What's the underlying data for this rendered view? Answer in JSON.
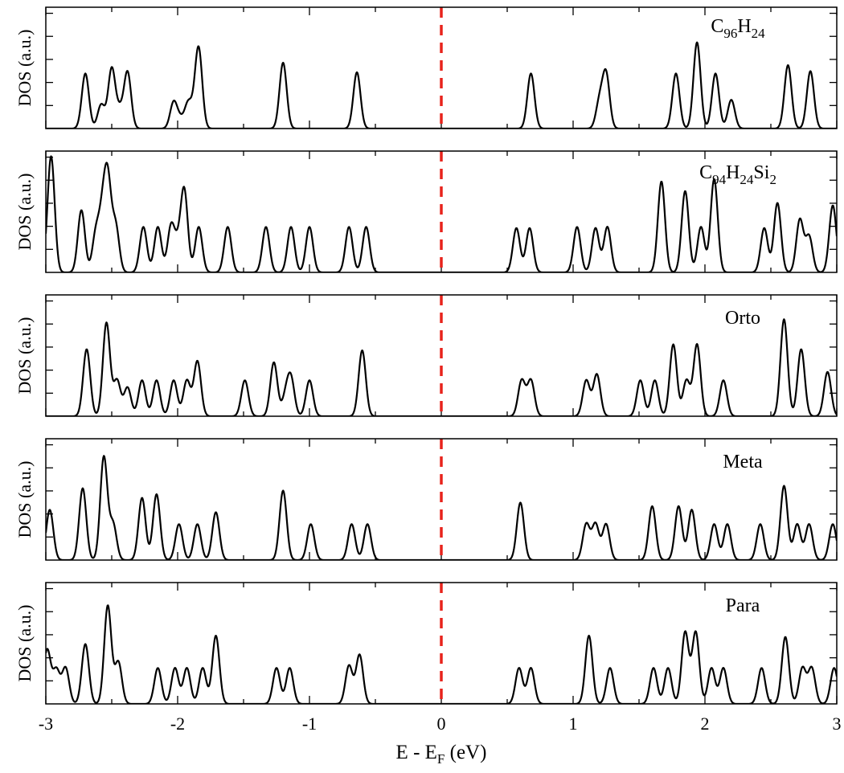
{
  "colors": {
    "fermi_line": "#e8231c",
    "curve": "#000000"
  },
  "chart_data": {
    "type": "line",
    "xlabel": "E - E",
    "xlabel_subscript": "F",
    "xlabel_suffix": " (eV)",
    "xlim": [
      -3,
      3
    ],
    "xticks": [
      "-3",
      "-2",
      "-1",
      "0",
      "1",
      "2",
      "3"
    ],
    "fermi_level": 0,
    "fermi_line_style": "dashed",
    "panels": [
      {
        "name": "C96H24",
        "label_parts": [
          {
            "t": "C"
          },
          {
            "t": "96",
            "sub": true
          },
          {
            "t": "H"
          },
          {
            "t": "24",
            "sub": true
          }
        ],
        "ylabel": "DOS (a.u.)",
        "ylim": [
          0,
          1
        ],
        "peaks": [
          [
            -2.7,
            0.46
          ],
          [
            -2.58,
            0.2
          ],
          [
            -2.5,
            0.5
          ],
          [
            -2.44,
            0.14
          ],
          [
            -2.38,
            0.47
          ],
          [
            -2.03,
            0.22
          ],
          [
            -1.98,
            0.07
          ],
          [
            -1.92,
            0.21
          ],
          [
            -1.87,
            0.08
          ],
          [
            -1.84,
            0.64
          ],
          [
            -1.2,
            0.55
          ],
          [
            -0.64,
            0.47
          ],
          [
            0.68,
            0.46
          ],
          [
            1.2,
            0.22
          ],
          [
            1.25,
            0.45
          ],
          [
            1.78,
            0.46
          ],
          [
            1.94,
            0.72
          ],
          [
            2.08,
            0.46
          ],
          [
            2.2,
            0.24
          ],
          [
            2.63,
            0.53
          ],
          [
            2.8,
            0.48
          ]
        ]
      },
      {
        "name": "C94H24Si2",
        "label_parts": [
          {
            "t": "C"
          },
          {
            "t": "94",
            "sub": true
          },
          {
            "t": "H"
          },
          {
            "t": "24",
            "sub": true
          },
          {
            "t": "Si"
          },
          {
            "t": "2",
            "sub": true
          }
        ],
        "ylabel": "DOS (a.u.)",
        "ylim": [
          0,
          1
        ],
        "peaks": [
          [
            -2.96,
            0.97
          ],
          [
            -2.73,
            0.52
          ],
          [
            -2.62,
            0.32
          ],
          [
            -2.57,
            0.42
          ],
          [
            -2.53,
            0.72
          ],
          [
            -2.47,
            0.38
          ],
          [
            -2.26,
            0.38
          ],
          [
            -2.15,
            0.38
          ],
          [
            -2.05,
            0.38
          ],
          [
            -2.0,
            0.18
          ],
          [
            -1.95,
            0.68
          ],
          [
            -1.84,
            0.38
          ],
          [
            -1.62,
            0.38
          ],
          [
            -1.33,
            0.38
          ],
          [
            -1.14,
            0.38
          ],
          [
            -1.0,
            0.38
          ],
          [
            -0.7,
            0.38
          ],
          [
            -0.57,
            0.38
          ],
          [
            0.57,
            0.37
          ],
          [
            0.67,
            0.37
          ],
          [
            1.03,
            0.38
          ],
          [
            1.17,
            0.37
          ],
          [
            1.26,
            0.38
          ],
          [
            1.67,
            0.76
          ],
          [
            1.85,
            0.68
          ],
          [
            1.97,
            0.38
          ],
          [
            2.07,
            0.78
          ],
          [
            2.45,
            0.37
          ],
          [
            2.55,
            0.58
          ],
          [
            2.72,
            0.44
          ],
          [
            2.79,
            0.3
          ],
          [
            2.97,
            0.56
          ]
        ]
      },
      {
        "name": "Orto",
        "label_parts": [
          {
            "t": "Orto"
          }
        ],
        "ylabel": "DOS (a.u.)",
        "ylim": [
          0,
          1
        ],
        "peaks": [
          [
            -2.69,
            0.56
          ],
          [
            -2.54,
            0.78
          ],
          [
            -2.46,
            0.3
          ],
          [
            -2.38,
            0.24
          ],
          [
            -2.27,
            0.3
          ],
          [
            -2.16,
            0.3
          ],
          [
            -2.03,
            0.3
          ],
          [
            -1.93,
            0.3
          ],
          [
            -1.85,
            0.46
          ],
          [
            -1.49,
            0.3
          ],
          [
            -1.27,
            0.45
          ],
          [
            -1.18,
            0.16
          ],
          [
            -1.14,
            0.3
          ],
          [
            -1.0,
            0.3
          ],
          [
            -0.6,
            0.55
          ],
          [
            0.61,
            0.3
          ],
          [
            0.68,
            0.3
          ],
          [
            1.1,
            0.3
          ],
          [
            1.18,
            0.35
          ],
          [
            1.51,
            0.3
          ],
          [
            1.62,
            0.3
          ],
          [
            1.76,
            0.6
          ],
          [
            1.86,
            0.3
          ],
          [
            1.94,
            0.6
          ],
          [
            2.14,
            0.3
          ],
          [
            2.6,
            0.81
          ],
          [
            2.73,
            0.56
          ],
          [
            2.93,
            0.37
          ]
        ]
      },
      {
        "name": "Meta",
        "label_parts": [
          {
            "t": "Meta"
          }
        ],
        "ylabel": "DOS (a.u.)",
        "ylim": [
          0,
          1
        ],
        "peaks": [
          [
            -2.97,
            0.42
          ],
          [
            -2.72,
            0.6
          ],
          [
            -2.56,
            0.86
          ],
          [
            -2.49,
            0.3
          ],
          [
            -2.27,
            0.52
          ],
          [
            -2.16,
            0.55
          ],
          [
            -1.99,
            0.3
          ],
          [
            -1.85,
            0.3
          ],
          [
            -1.71,
            0.4
          ],
          [
            -1.2,
            0.58
          ],
          [
            -0.99,
            0.3
          ],
          [
            -0.68,
            0.3
          ],
          [
            -0.56,
            0.3
          ],
          [
            0.6,
            0.48
          ],
          [
            1.1,
            0.3
          ],
          [
            1.17,
            0.3
          ],
          [
            1.25,
            0.3
          ],
          [
            1.6,
            0.45
          ],
          [
            1.8,
            0.45
          ],
          [
            1.9,
            0.42
          ],
          [
            2.07,
            0.3
          ],
          [
            2.17,
            0.3
          ],
          [
            2.42,
            0.3
          ],
          [
            2.6,
            0.62
          ],
          [
            2.7,
            0.3
          ],
          [
            2.79,
            0.3
          ],
          [
            2.97,
            0.3
          ]
        ]
      },
      {
        "name": "Para",
        "label_parts": [
          {
            "t": "Para"
          }
        ],
        "ylabel": "DOS (a.u.)",
        "ylim": [
          0,
          1
        ],
        "peaks": [
          [
            -2.99,
            0.45
          ],
          [
            -2.92,
            0.28
          ],
          [
            -2.85,
            0.3
          ],
          [
            -2.7,
            0.5
          ],
          [
            -2.53,
            0.82
          ],
          [
            -2.45,
            0.35
          ],
          [
            -2.15,
            0.3
          ],
          [
            -2.02,
            0.3
          ],
          [
            -1.93,
            0.3
          ],
          [
            -1.81,
            0.3
          ],
          [
            -1.71,
            0.57
          ],
          [
            -1.25,
            0.3
          ],
          [
            -1.15,
            0.3
          ],
          [
            -0.7,
            0.32
          ],
          [
            -0.62,
            0.41
          ],
          [
            0.59,
            0.3
          ],
          [
            0.68,
            0.3
          ],
          [
            1.12,
            0.57
          ],
          [
            1.28,
            0.3
          ],
          [
            1.61,
            0.3
          ],
          [
            1.72,
            0.3
          ],
          [
            1.85,
            0.6
          ],
          [
            1.93,
            0.6
          ],
          [
            2.05,
            0.3
          ],
          [
            2.14,
            0.3
          ],
          [
            2.43,
            0.3
          ],
          [
            2.61,
            0.56
          ],
          [
            2.74,
            0.3
          ],
          [
            2.81,
            0.3
          ],
          [
            2.98,
            0.3
          ]
        ]
      }
    ]
  }
}
